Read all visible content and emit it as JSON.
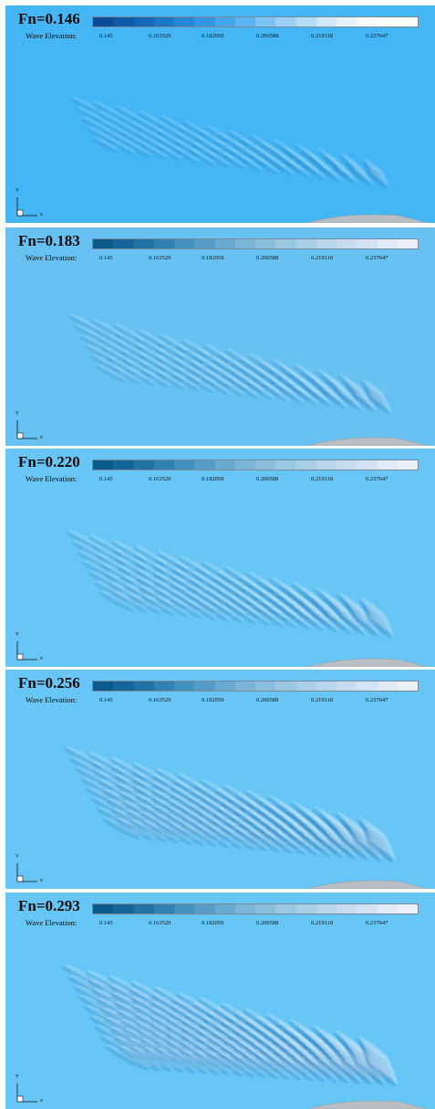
{
  "legend": {
    "label": "Wave Elevation:",
    "ticks": [
      "0.145",
      "0.163529",
      "0.182059",
      "0.200588",
      "0.219118",
      "0.237647"
    ]
  },
  "axis": {
    "x_label": "x",
    "y_label": "Y"
  },
  "panels": [
    {
      "title": "Fn=0.146",
      "background": "#45b6f5",
      "palette": [
        "#0b4a96",
        "#0c5aa8",
        "#1068b8",
        "#1a78c9",
        "#2587d6",
        "#3396e0",
        "#45a6ea",
        "#5db3ef",
        "#7dc3f3",
        "#9ad1f6",
        "#b6ddf8",
        "#d0e9fa",
        "#e8f4fd",
        "#f7fbff",
        "#ffffff",
        "#ffffff"
      ]
    },
    {
      "title": "Fn=0.183",
      "background": "#67c2f3",
      "palette": [
        "#0b5a8e",
        "#15659a",
        "#2273a5",
        "#3182b2",
        "#4190be",
        "#559dc7",
        "#67a9cf",
        "#7ab4d6",
        "#8bbedd",
        "#9ac7e2",
        "#a9cfe7",
        "#b8d6eb",
        "#c5ddef",
        "#d2e4f3",
        "#dfebf6",
        "#ebf1f8"
      ]
    },
    {
      "title": "Fn=0.220",
      "background": "#67c6f5",
      "palette": [
        "#0b5a8e",
        "#15659a",
        "#2273a5",
        "#3182b2",
        "#4190be",
        "#559dc7",
        "#67a9cf",
        "#7ab4d6",
        "#8bbedd",
        "#9ac7e2",
        "#a9cfe7",
        "#b8d6eb",
        "#c5ddef",
        "#d2e4f3",
        "#dfebf6",
        "#ebf1f8"
      ]
    },
    {
      "title": "Fn=0.256",
      "background": "#67c6f6",
      "palette": [
        "#0b5a8e",
        "#15659a",
        "#2273a5",
        "#3182b2",
        "#4190be",
        "#559dc7",
        "#67a9cf",
        "#7ab4d6",
        "#8bbedd",
        "#9ac7e2",
        "#a9cfe7",
        "#b8d6eb",
        "#c5ddef",
        "#d2e4f3",
        "#dfebf6",
        "#ebf1f8"
      ]
    },
    {
      "title": "Fn=0.293",
      "background": "#66c6f6",
      "palette": [
        "#0b5a8e",
        "#15659a",
        "#2273a5",
        "#3182b2",
        "#4190be",
        "#559dc7",
        "#67a9cf",
        "#7ab4d6",
        "#8bbedd",
        "#9ac7e2",
        "#a9cfe7",
        "#b8d6eb",
        "#c5ddef",
        "#d2e4f3",
        "#dfebf6",
        "#ebf1f8"
      ]
    }
  ]
}
